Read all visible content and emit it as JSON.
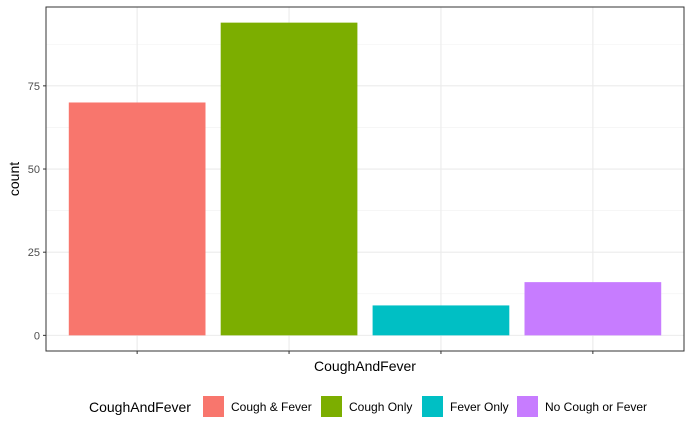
{
  "chart_data": {
    "type": "bar",
    "title": "",
    "xlabel": "CoughAndFever",
    "ylabel": "count",
    "categories": [
      "Cough & Fever",
      "Cough Only",
      "Fever Only",
      "No Cough or Fever"
    ],
    "values": [
      70,
      94,
      9,
      16
    ],
    "colors": [
      "#F8766D",
      "#7CAE00",
      "#00BFC4",
      "#C77CFF"
    ],
    "ylim": [
      -4.7,
      98.7
    ],
    "yticks": [
      0,
      25,
      50,
      75
    ],
    "show_x_tick_labels": false,
    "grid": true,
    "legend": {
      "title": "CoughAndFever",
      "position": "bottom",
      "items": [
        "Cough & Fever",
        "Cough Only",
        "Fever Only",
        "No Cough or Fever"
      ]
    }
  }
}
